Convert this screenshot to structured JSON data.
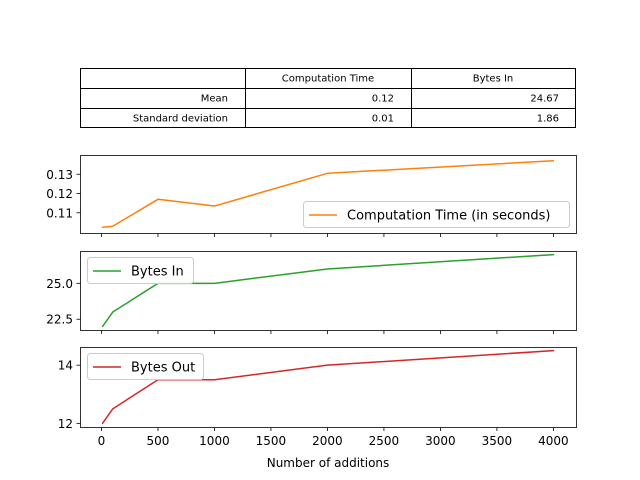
{
  "summary_table": {
    "columns": [
      "",
      "Computation Time",
      "Bytes In"
    ],
    "rows": [
      {
        "label": "Mean",
        "values": [
          "0.12",
          "24.67"
        ]
      },
      {
        "label": "Standard deviation",
        "values": [
          "0.01",
          "1.86"
        ]
      }
    ]
  },
  "chart_data": [
    {
      "type": "line",
      "x": [
        10,
        100,
        500,
        1000,
        2000,
        4000
      ],
      "series": [
        {
          "name": "Computation Time (in seconds)",
          "color": "#ff7f0e",
          "values": [
            0.1025,
            0.103,
            0.117,
            0.1135,
            0.1305,
            0.137
          ]
        }
      ],
      "ylim": [
        0.0995,
        0.14
      ],
      "yticks": [
        0.11,
        0.12,
        0.13
      ],
      "ytick_labels": [
        "0.11",
        "0.12",
        "0.13"
      ],
      "show_xticklabels": false,
      "legend_loc": "lower-right"
    },
    {
      "type": "line",
      "x": [
        10,
        100,
        500,
        1000,
        2000,
        4000
      ],
      "series": [
        {
          "name": "Bytes In",
          "color": "#2ca02c",
          "values": [
            22.0,
            23.0,
            25.0,
            25.0,
            26.0,
            27.0
          ]
        }
      ],
      "ylim": [
        21.75,
        27.25
      ],
      "yticks": [
        22.5,
        25.0
      ],
      "ytick_labels": [
        "22.5",
        "25.0"
      ],
      "show_xticklabels": false,
      "legend_loc": "upper-left"
    },
    {
      "type": "line",
      "x": [
        10,
        100,
        500,
        1000,
        2000,
        4000
      ],
      "series": [
        {
          "name": "Bytes Out",
          "color": "#d62728",
          "values": [
            12.0,
            12.5,
            13.5,
            13.5,
            14.0,
            14.5
          ]
        }
      ],
      "ylim": [
        11.875,
        14.625
      ],
      "yticks": [
        12,
        14
      ],
      "ytick_labels": [
        "12",
        "14"
      ],
      "show_xticklabels": true,
      "legend_loc": "upper-left"
    }
  ],
  "xaxis": {
    "label": "Number of additions",
    "xlim": [
      -190,
      4200
    ],
    "ticks": [
      0,
      500,
      1000,
      1500,
      2000,
      2500,
      3000,
      3500,
      4000
    ],
    "tick_labels": [
      "0",
      "500",
      "1000",
      "1500",
      "2000",
      "2500",
      "3000",
      "3500",
      "4000"
    ]
  }
}
